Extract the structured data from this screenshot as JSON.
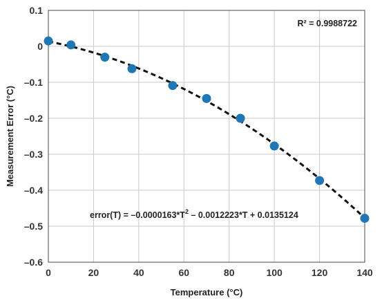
{
  "chart_data": {
    "type": "scatter",
    "title": "",
    "xlabel": "Temperature (°C)",
    "ylabel": "Measurement Error (°C)",
    "xlim": [
      0,
      140
    ],
    "ylim": [
      -0.6,
      0.1
    ],
    "x_ticks": [
      0,
      20,
      40,
      60,
      80,
      100,
      120,
      140
    ],
    "y_ticks": [
      0.1,
      0,
      -0.1,
      -0.2,
      -0.3,
      -0.4,
      -0.5,
      -0.6
    ],
    "y_tick_labels": [
      "0.1",
      "0",
      "–0.1",
      "–0.2",
      "–0.3",
      "–0.4",
      "–0.5",
      "–0.6"
    ],
    "grid": true,
    "series": [
      {
        "x": [
          0,
          10,
          25,
          37,
          55,
          70,
          85,
          100,
          120,
          140
        ],
        "y": [
          0.015,
          0.004,
          -0.03,
          -0.062,
          -0.109,
          -0.145,
          -0.2,
          -0.277,
          -0.373,
          -0.478
        ]
      }
    ],
    "trendline": {
      "style": "dashed",
      "a": -1.63e-05,
      "b": -0.0012223,
      "c": 0.0135124
    },
    "annotations": {
      "r_squared": "R² = 0.9988722",
      "equation_main": "error(T) = –0.0000163*T",
      "equation_sup": "2",
      "equation_rest": " – 0.0012223*T + 0.0135124"
    },
    "colors": {
      "marker": "#1f77b4",
      "trendline": "#111111",
      "grid": "#c8c8c8"
    }
  }
}
